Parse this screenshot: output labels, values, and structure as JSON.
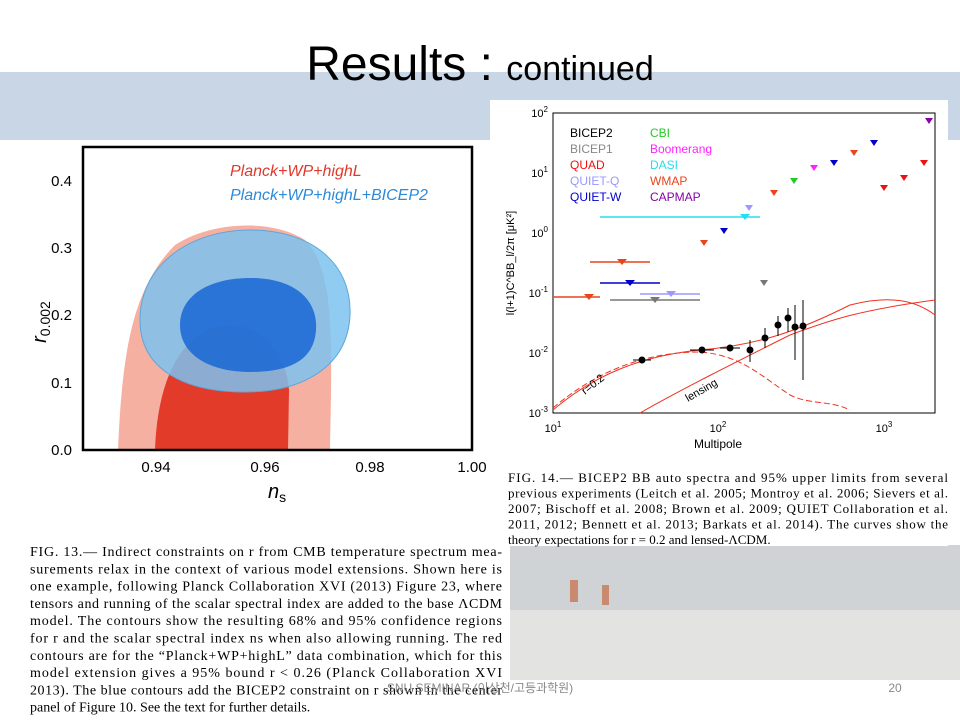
{
  "title": "Results : ",
  "title_sub": "continued",
  "left_figure": {
    "legend": [
      "Planck+WP+highL",
      "Planck+WP+highL+BICEP2"
    ],
    "xticks": [
      "0.94",
      "0.96",
      "0.98",
      "1.00"
    ],
    "yticks": [
      "0.0",
      "0.1",
      "0.2",
      "0.3",
      "0.4"
    ],
    "xlabel": "n",
    "xlabel_sub": "s",
    "ylabel": "r",
    "ylabel_sub": "0.002"
  },
  "right_figure": {
    "legend": [
      "BICEP2",
      "BICEP1",
      "QUAD",
      "QUIET-Q",
      "QUIET-W",
      "CBI",
      "Boomerang",
      "DASI",
      "WMAP",
      "CAPMAP"
    ],
    "xticks": [
      {
        "base": "10",
        "exp": "1"
      },
      {
        "base": "10",
        "exp": "2"
      },
      {
        "base": "10",
        "exp": "3"
      }
    ],
    "yticks": [
      {
        "base": "10",
        "exp": "-3"
      },
      {
        "base": "10",
        "exp": "-2"
      },
      {
        "base": "10",
        "exp": "-1"
      },
      {
        "base": "10",
        "exp": "0"
      },
      {
        "base": "10",
        "exp": "1"
      },
      {
        "base": "10",
        "exp": "2"
      }
    ],
    "xlabel": "Multipole",
    "ylabel": "l(l+1)C^BB_l/2π [μK²]",
    "annotations": [
      "r=0.2",
      "lensing"
    ]
  },
  "caption_13": [
    "FIG. 13.— Indirect constraints on r from CMB temperature spectrum mea-",
    "surements relax in the context of various model extensions. Shown here is",
    "one example, following Planck Collaboration XVI (2013) Figure 23, where",
    "tensors and running of the scalar spectral index are added to the base ΛCDM",
    "model. The contours show the resulting 68% and 95% confidence regions",
    "for r and the scalar spectral index ns when also allowing running. The red",
    "contours are for the “Planck+WP+highL” data combination, which for this",
    "model extension gives a 95% bound r < 0.26 (Planck Collaboration XVI",
    "2013). The blue contours add the BICEP2 constraint on r shown in the center",
    "panel of Figure 10. See the text for further details."
  ],
  "caption_14": [
    "FIG. 14.— BICEP2 BB auto spectra and 95% upper limits from several",
    "previous experiments (Leitch et al. 2005; Montroy et al. 2006; Sievers et al.",
    "2007; Bischoff et al. 2008; Brown et al. 2009; QUIET Collaboration et al.",
    "2011, 2012; Bennett et al. 2013; Barkats et al. 2014). The curves show the",
    "theory expectations for r = 0.2 and lensed-ΛCDM."
  ],
  "footer": {
    "center": "SNU SEMINAR (이상천/고등과학원)",
    "page": "20"
  }
}
